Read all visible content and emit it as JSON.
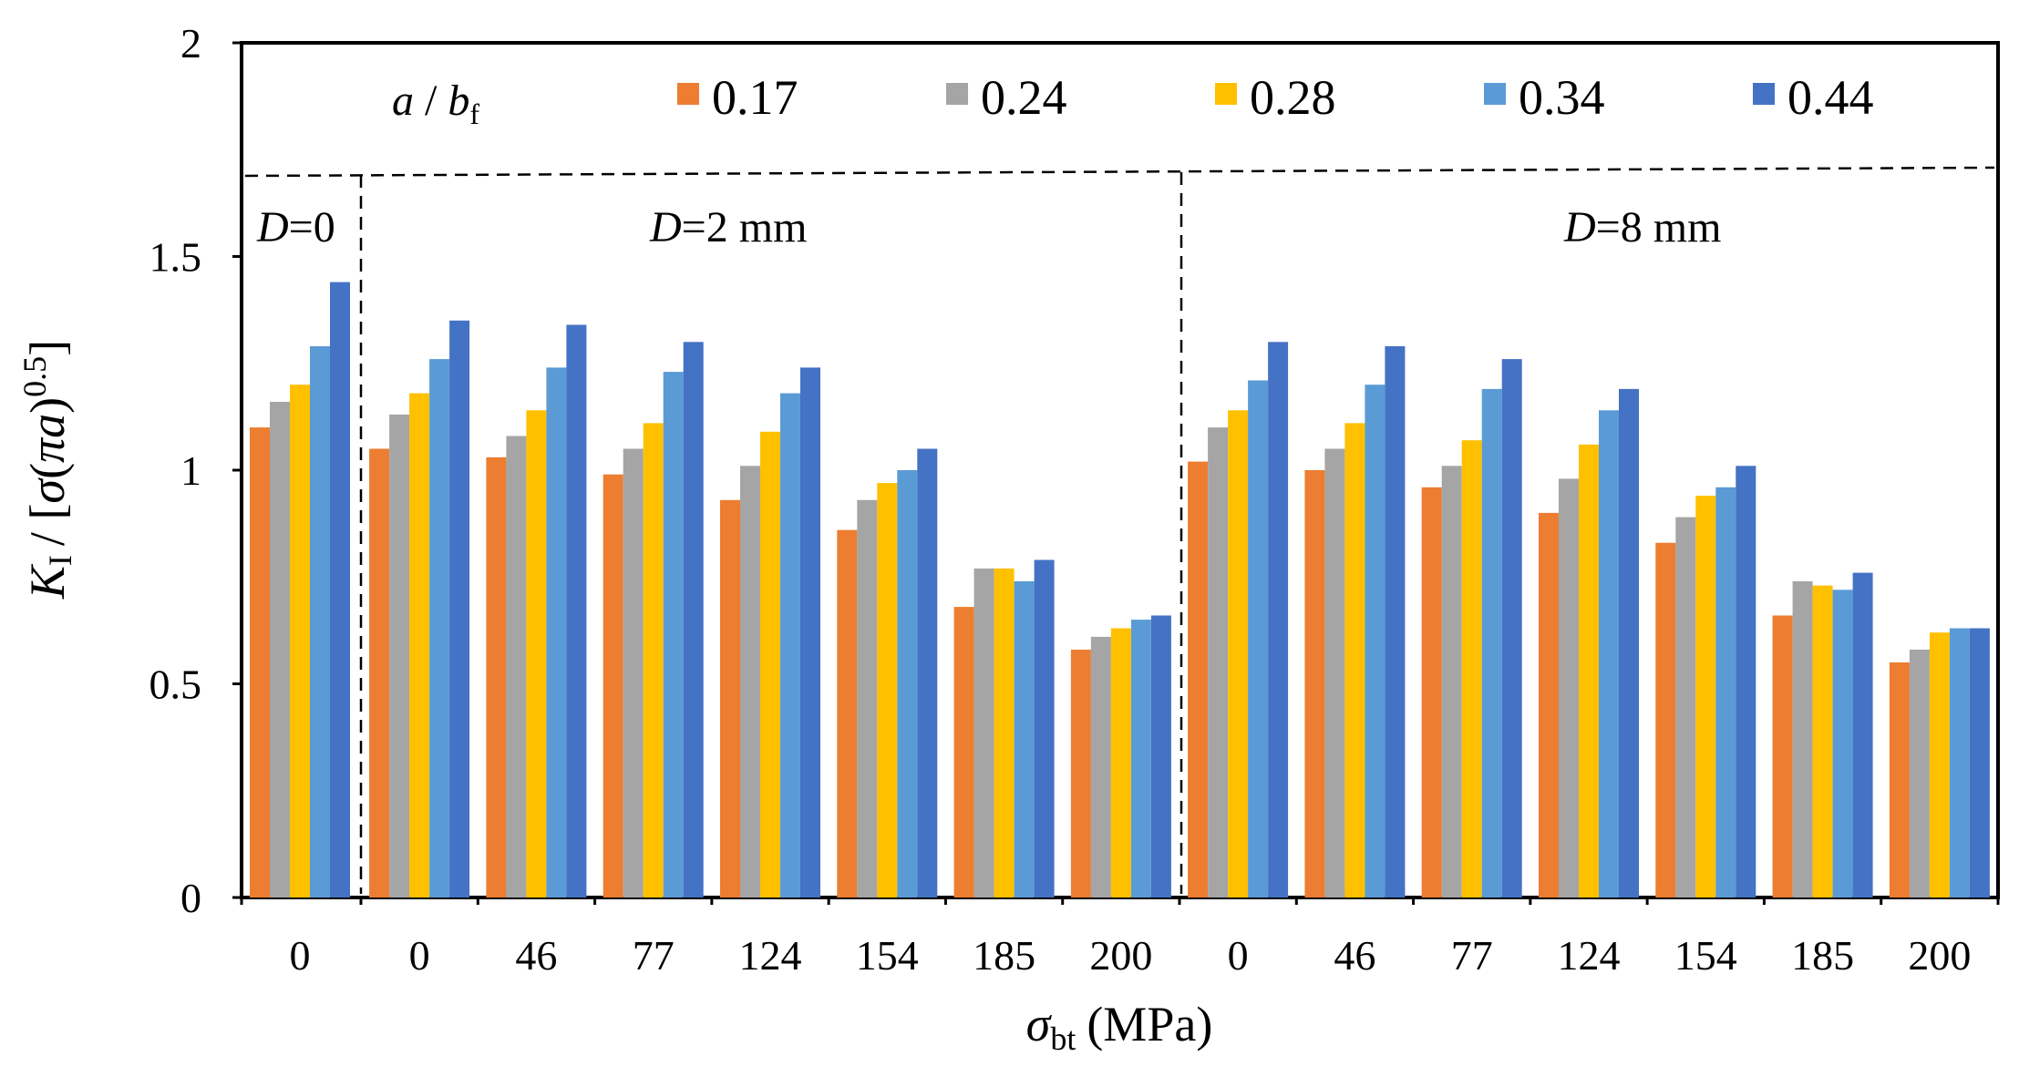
{
  "chart_data": {
    "type": "bar",
    "title": "",
    "xlabel": {
      "symbol": "σ",
      "sub": "bt",
      "unit": "(MPa)"
    },
    "ylabel": {
      "k": "K",
      "sub": "I",
      "rest": "/ [σ(πa)",
      "exp": "0.5",
      "close": "]"
    },
    "ylim": [
      0,
      2
    ],
    "yticks": [
      "0",
      "0.5",
      "1",
      "1.5",
      "2"
    ],
    "ytick_values": [
      0,
      0.5,
      1,
      1.5,
      2
    ],
    "grid": false,
    "legend_position": "top",
    "legend_title": {
      "a": "a",
      "slash": " / ",
      "b": "b",
      "sub": "f"
    },
    "group_labels": [
      {
        "d": "D",
        "text": "=0"
      },
      {
        "d": "D",
        "text": "=2 mm"
      },
      {
        "d": "D",
        "text": "=8 mm"
      }
    ],
    "categories": [
      "0",
      "0",
      "46",
      "77",
      "124",
      "154",
      "185",
      "200",
      "0",
      "46",
      "77",
      "124",
      "154",
      "185",
      "200"
    ],
    "series": [
      {
        "name": "0.17",
        "color": "#ED7D31",
        "values": [
          1.1,
          1.05,
          1.03,
          0.99,
          0.93,
          0.86,
          0.68,
          0.58,
          1.02,
          1.0,
          0.96,
          0.9,
          0.83,
          0.66,
          0.55
        ]
      },
      {
        "name": "0.24",
        "color": "#A5A5A5",
        "values": [
          1.16,
          1.13,
          1.08,
          1.05,
          1.01,
          0.93,
          0.77,
          0.61,
          1.1,
          1.05,
          1.01,
          0.98,
          0.89,
          0.74,
          0.58
        ]
      },
      {
        "name": "0.28",
        "color": "#FFC000",
        "values": [
          1.2,
          1.18,
          1.14,
          1.11,
          1.09,
          0.97,
          0.77,
          0.63,
          1.14,
          1.11,
          1.07,
          1.06,
          0.94,
          0.73,
          0.62
        ]
      },
      {
        "name": "0.34",
        "color": "#5B9BD5",
        "values": [
          1.29,
          1.26,
          1.24,
          1.23,
          1.18,
          1.0,
          0.74,
          0.65,
          1.21,
          1.2,
          1.19,
          1.14,
          0.96,
          0.72,
          0.63
        ]
      },
      {
        "name": "0.44",
        "color": "#4472C4",
        "values": [
          1.44,
          1.35,
          1.34,
          1.3,
          1.24,
          1.05,
          0.79,
          0.66,
          1.3,
          1.29,
          1.26,
          1.19,
          1.01,
          0.76,
          0.63
        ]
      }
    ]
  }
}
